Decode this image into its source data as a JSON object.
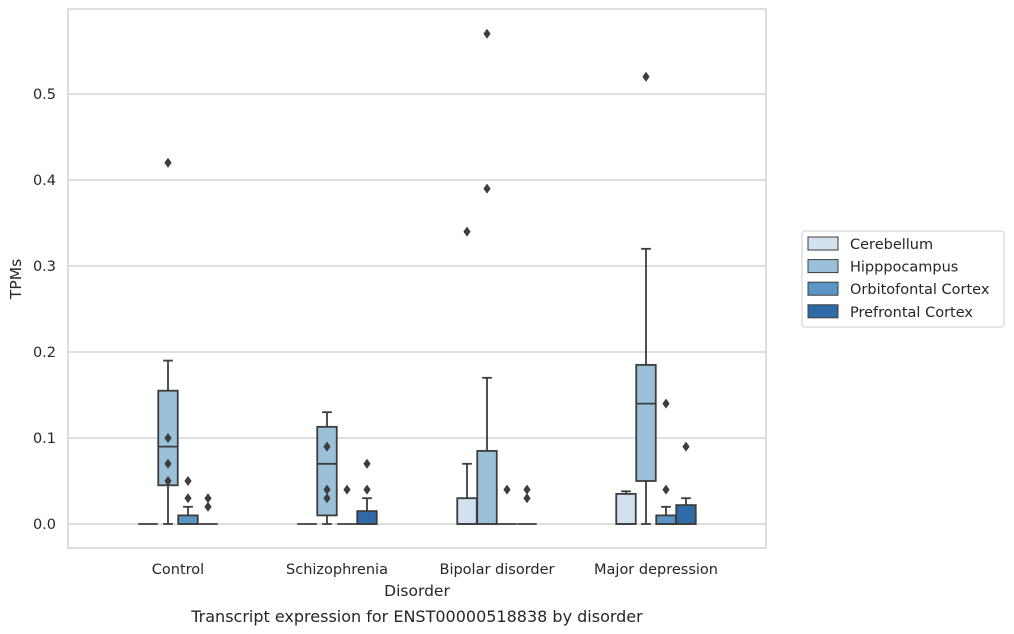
{
  "chart_data": {
    "type": "box",
    "caption": "Transcript expression for ENST00000518838 by disorder",
    "xlabel": "Disorder",
    "ylabel": "TPMs",
    "ylim": [
      -0.028,
      0.6
    ],
    "yticks": [
      0.0,
      0.1,
      0.2,
      0.3,
      0.4,
      0.5
    ],
    "ytick_labels": [
      "0.0",
      "0.1",
      "0.2",
      "0.3",
      "0.4",
      "0.5"
    ],
    "grid": "horizontal",
    "legend_position": "right",
    "categories": [
      "Control",
      "Schizophrenia",
      "Bipolar disorder",
      "Major depression"
    ],
    "series": [
      {
        "name": "Cerebellum",
        "color": "#d1e1f0",
        "boxes": [
          {
            "q1": 0.0,
            "median": 0.0,
            "q3": 0.0,
            "whisker_low": 0.0,
            "whisker_high": 0.0,
            "outliers": []
          },
          {
            "q1": 0.0,
            "median": 0.0,
            "q3": 0.0,
            "whisker_low": 0.0,
            "whisker_high": 0.0,
            "outliers": []
          },
          {
            "q1": 0.0,
            "median": 0.0,
            "q3": 0.03,
            "whisker_low": 0.0,
            "whisker_high": 0.07,
            "outliers": [
              0.34
            ]
          },
          {
            "q1": 0.0,
            "median": 0.0,
            "q3": 0.035,
            "whisker_low": 0.0,
            "whisker_high": 0.038,
            "outliers": []
          }
        ]
      },
      {
        "name": "Hipppocampus",
        "color": "#9ac0da",
        "boxes": [
          {
            "q1": 0.045,
            "median": 0.09,
            "q3": 0.155,
            "whisker_low": 0.0,
            "whisker_high": 0.19,
            "outliers": [
              0.05,
              0.07,
              0.1,
              0.42
            ]
          },
          {
            "q1": 0.01,
            "median": 0.07,
            "q3": 0.113,
            "whisker_low": 0.0,
            "whisker_high": 0.13,
            "outliers": [
              0.03,
              0.04,
              0.09
            ]
          },
          {
            "q1": 0.0,
            "median": 0.0,
            "q3": 0.085,
            "whisker_low": 0.0,
            "whisker_high": 0.17,
            "outliers": [
              0.39,
              0.57
            ]
          },
          {
            "q1": 0.05,
            "median": 0.14,
            "q3": 0.185,
            "whisker_low": 0.0,
            "whisker_high": 0.32,
            "outliers": [
              0.52
            ]
          }
        ]
      },
      {
        "name": "Orbitofontal Cortex",
        "color": "#5b97c6",
        "boxes": [
          {
            "q1": 0.0,
            "median": 0.0,
            "q3": 0.01,
            "whisker_low": 0.0,
            "whisker_high": 0.02,
            "outliers": [
              0.03,
              0.05
            ]
          },
          {
            "q1": 0.0,
            "median": 0.0,
            "q3": 0.0,
            "whisker_low": 0.0,
            "whisker_high": 0.0,
            "outliers": [
              0.04
            ]
          },
          {
            "q1": 0.0,
            "median": 0.0,
            "q3": 0.0,
            "whisker_low": 0.0,
            "whisker_high": 0.0,
            "outliers": [
              0.04
            ]
          },
          {
            "q1": 0.0,
            "median": 0.0,
            "q3": 0.01,
            "whisker_low": 0.0,
            "whisker_high": 0.02,
            "outliers": [
              0.04,
              0.14
            ]
          }
        ]
      },
      {
        "name": "Prefrontal Cortex",
        "color": "#2f6ba6",
        "boxes": [
          {
            "q1": 0.0,
            "median": 0.0,
            "q3": 0.0,
            "whisker_low": 0.0,
            "whisker_high": 0.0,
            "outliers": [
              0.02,
              0.03
            ]
          },
          {
            "q1": 0.0,
            "median": 0.0,
            "q3": 0.015,
            "whisker_low": 0.0,
            "whisker_high": 0.03,
            "outliers": [
              0.04,
              0.07
            ]
          },
          {
            "q1": 0.0,
            "median": 0.0,
            "q3": 0.0,
            "whisker_low": 0.0,
            "whisker_high": 0.0,
            "outliers": [
              0.03,
              0.04
            ]
          },
          {
            "q1": 0.0,
            "median": 0.0,
            "q3": 0.022,
            "whisker_low": 0.0,
            "whisker_high": 0.03,
            "outliers": [
              0.09
            ]
          }
        ]
      }
    ]
  }
}
